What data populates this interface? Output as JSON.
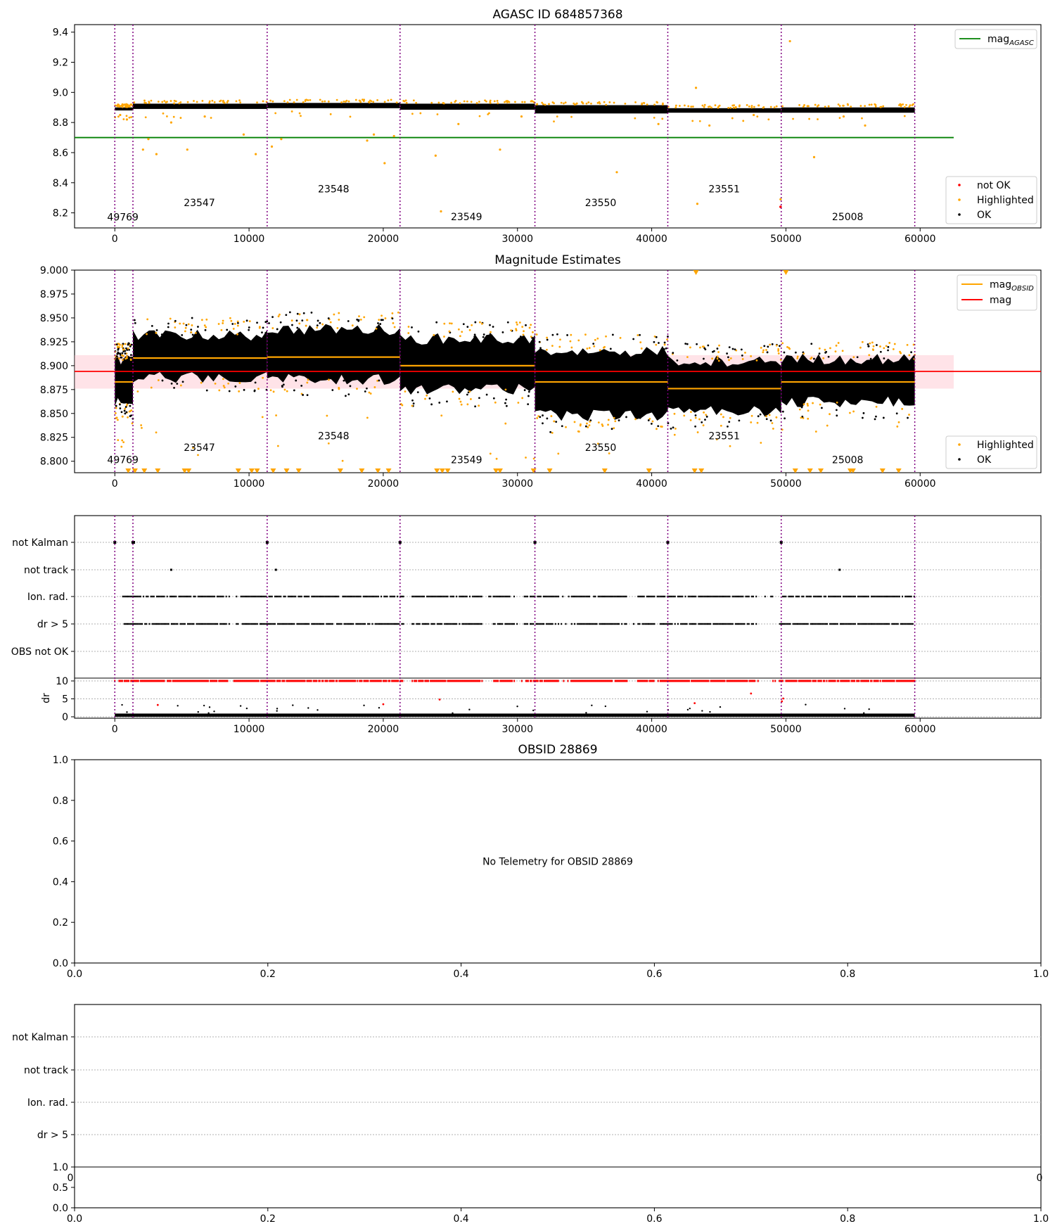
{
  "figure": {
    "background": "#ffffff"
  },
  "colors": {
    "ok": "#000000",
    "highlighted": "#ffa500",
    "not_ok": "#ff0000",
    "mag_agasc": "#008000",
    "mag_obsid": "#ffa500",
    "mag": "#ff0000",
    "obsid_lines": "#800080",
    "band": "#ffc0cb",
    "grid": "#b0b0b0"
  },
  "obsid_boundaries": [
    0,
    1350,
    11350,
    21250,
    31300,
    41200,
    49650,
    59600
  ],
  "obsids": [
    {
      "label": "49769",
      "x": 600,
      "y_top": 8.15,
      "y_mag": 8.798
    },
    {
      "label": "23547",
      "x": 6300,
      "y_top": 8.245,
      "y_mag": 8.811
    },
    {
      "label": "23548",
      "x": 16300,
      "y_top": 8.335,
      "y_mag": 8.823
    },
    {
      "label": "23549",
      "x": 26200,
      "y_top": 8.152,
      "y_mag": 8.798
    },
    {
      "label": "23550",
      "x": 36200,
      "y_top": 8.245,
      "y_mag": 8.811
    },
    {
      "label": "23551",
      "x": 45400,
      "y_top": 8.335,
      "y_mag": 8.823
    },
    {
      "label": "25008",
      "x": 54600,
      "y_top": 8.152,
      "y_mag": 8.798
    }
  ],
  "chart_data": [
    {
      "id": "p1",
      "type": "scatter",
      "title": "AGASC ID 684857368",
      "xlim": [
        -3000,
        69000
      ],
      "ylim": [
        8.1,
        9.45
      ],
      "xticks": [
        0,
        10000,
        20000,
        30000,
        40000,
        50000,
        60000
      ],
      "yticks": [
        8.2,
        8.4,
        8.6,
        8.8,
        9.0,
        9.2,
        9.4
      ],
      "ytick_labels": [
        "8.2",
        "8.4",
        "8.6",
        "8.8",
        "9.0",
        "9.2",
        "9.4"
      ],
      "mag_agasc": 8.7,
      "mag_agasc_xrange": [
        -3000,
        62500
      ],
      "ok_band_by_obsid": [
        [
          8.88,
          8.9
        ],
        [
          8.89,
          8.925
        ],
        [
          8.895,
          8.93
        ],
        [
          8.885,
          8.925
        ],
        [
          8.86,
          8.915
        ],
        [
          8.865,
          8.895
        ],
        [
          8.865,
          8.9
        ]
      ],
      "legend_top": [
        {
          "label": "mag",
          "sub": "AGASC"
        }
      ],
      "legend_bottom": [
        "not OK",
        "Highlighted",
        "OK"
      ],
      "outliers": [
        [
          400,
          8.85
        ],
        [
          900,
          8.82
        ],
        [
          2100,
          8.62
        ],
        [
          2500,
          8.69
        ],
        [
          3100,
          8.59
        ],
        [
          4200,
          8.8
        ],
        [
          5400,
          8.62
        ],
        [
          6700,
          8.84
        ],
        [
          9600,
          8.72
        ],
        [
          10500,
          8.59
        ],
        [
          11700,
          8.64
        ],
        [
          12400,
          8.69
        ],
        [
          18800,
          8.68
        ],
        [
          19300,
          8.72
        ],
        [
          20100,
          8.53
        ],
        [
          20800,
          8.71
        ],
        [
          23900,
          8.58
        ],
        [
          24300,
          8.21
        ],
        [
          25600,
          8.79
        ],
        [
          28700,
          8.62
        ],
        [
          30300,
          8.84
        ],
        [
          37400,
          8.47
        ],
        [
          40500,
          8.79
        ],
        [
          43300,
          9.03
        ],
        [
          43400,
          8.26
        ],
        [
          44300,
          8.78
        ],
        [
          47600,
          8.85
        ],
        [
          49600,
          8.29
        ],
        [
          50300,
          9.34
        ],
        [
          52100,
          8.57
        ],
        [
          54300,
          8.84
        ],
        [
          55900,
          8.78
        ]
      ],
      "not_ok_points": [
        [
          49600,
          8.24
        ]
      ]
    },
    {
      "id": "p2",
      "type": "scatter",
      "title": "Magnitude Estimates",
      "xlim": [
        -3000,
        69000
      ],
      "ylim": [
        8.788,
        9.0
      ],
      "xticks": [
        0,
        10000,
        20000,
        30000,
        40000,
        50000,
        60000
      ],
      "yticks": [
        8.8,
        8.825,
        8.85,
        8.875,
        8.9,
        8.925,
        8.95,
        8.975,
        9.0
      ],
      "ytick_labels": [
        "8.800",
        "8.825",
        "8.850",
        "8.875",
        "8.900",
        "8.925",
        "8.950",
        "8.975",
        "9.000"
      ],
      "mag": 8.894,
      "mag_band": [
        8.876,
        8.911
      ],
      "mag_obsid": [
        8.883,
        8.908,
        8.909,
        8.9,
        8.883,
        8.876,
        8.883
      ],
      "dense_ranges": [
        [
          8.862,
          8.906
        ],
        [
          8.888,
          8.932
        ],
        [
          8.886,
          8.938
        ],
        [
          8.875,
          8.928
        ],
        [
          8.848,
          8.915
        ],
        [
          8.852,
          8.905
        ],
        [
          8.862,
          8.907
        ]
      ],
      "legend_top": [
        {
          "label": "mag",
          "sub": "OBSID"
        },
        {
          "label": "mag",
          "sub": ""
        }
      ],
      "legend_bottom": [
        "Highlighted",
        "OK"
      ],
      "triangle_x": [
        1000,
        1500,
        2200,
        3200,
        5200,
        5500,
        9200,
        10200,
        10600,
        11800,
        12800,
        13700,
        16800,
        18400,
        19600,
        20400,
        24000,
        24400,
        24800,
        28400,
        28700,
        31200,
        32400,
        36500,
        39800,
        43200,
        43700,
        50700,
        51800,
        52600,
        54800,
        55000,
        57200,
        58400
      ]
    },
    {
      "id": "p3",
      "type": "scatter",
      "xlim": [
        -3000,
        69000
      ],
      "xticks": [
        0,
        10000,
        20000,
        30000,
        40000,
        50000,
        60000
      ],
      "flag_labels": [
        "not Kalman",
        "not track",
        "Ion. rad.",
        "dr > 5",
        "OBS not OK"
      ],
      "dr_ylabel": "dr",
      "dr_ylim": [
        0,
        10.2
      ],
      "dr_yticks": [
        0,
        5,
        10
      ],
      "not_track_x": [
        4200,
        12000,
        54000
      ],
      "gaps": [
        [
          8400,
          9000
        ],
        [
          21500,
          22100
        ],
        [
          27400,
          28200
        ],
        [
          29800,
          30500
        ],
        [
          33100,
          34000
        ],
        [
          38200,
          38900
        ],
        [
          40200,
          40600
        ],
        [
          47800,
          49500
        ]
      ]
    },
    {
      "id": "p4",
      "type": "scatter",
      "title": "OBSID 28869",
      "message": "No Telemetry for OBSID 28869",
      "xlim": [
        0,
        1
      ],
      "ylim": [
        0,
        1
      ],
      "xticks": [
        0,
        0.2,
        0.4,
        0.6,
        0.8,
        1.0
      ],
      "yticks": [
        0,
        0.2,
        0.4,
        0.6,
        0.8,
        1.0
      ],
      "xtick_labels": [
        "0.0",
        "0.2",
        "0.4",
        "0.6",
        "0.8",
        "1.0"
      ],
      "ytick_labels": [
        "0.0",
        "0.2",
        "0.4",
        "0.6",
        "0.8",
        "1.0"
      ]
    },
    {
      "id": "p5",
      "type": "scatter",
      "flag_labels": [
        "not Kalman",
        "not track",
        "Ion. rad.",
        "dr > 5"
      ],
      "sub_yticks": [
        0,
        0.5,
        1.0
      ],
      "sub_ytick_labels": [
        "0.0",
        "0.5",
        "1.0"
      ],
      "xticks": [
        0,
        0.2,
        0.4,
        0.6,
        0.8,
        1.0
      ],
      "xtick_labels": [
        "0.0",
        "0.2",
        "0.4",
        "0.6",
        "0.8",
        "1.0"
      ],
      "clipped_x_labels": [
        "0",
        "0"
      ]
    }
  ]
}
